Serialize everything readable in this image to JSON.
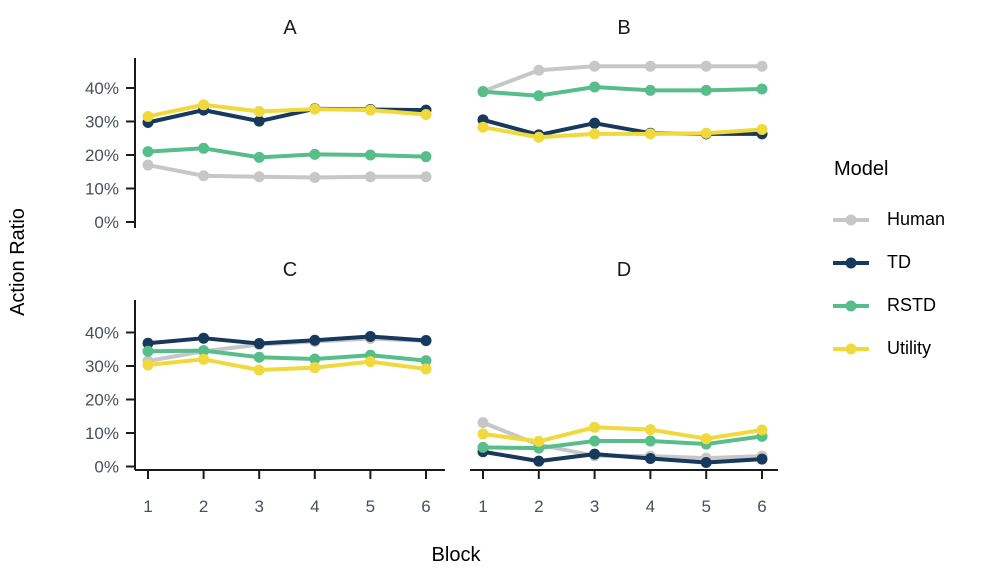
{
  "figure": {
    "background": "#ffffff"
  },
  "legend": {
    "title": "Model",
    "entries": [
      {
        "label": "Human",
        "color": "#c7c7c7"
      },
      {
        "label": "TD",
        "color": "#17395c"
      },
      {
        "label": "RSTD",
        "color": "#57bd8b"
      },
      {
        "label": "Utility",
        "color": "#efd93c"
      }
    ]
  },
  "chart_data": {
    "type": "line",
    "title": "",
    "xlabel": "Block",
    "ylabel": "Action Ratio",
    "x": [
      1,
      2,
      3,
      4,
      5,
      6
    ],
    "xtick_labels": [
      "1",
      "2",
      "3",
      "4",
      "5",
      "6"
    ],
    "yticks": [
      0,
      10,
      20,
      30,
      40
    ],
    "ytick_labels": [
      "0%",
      "10%",
      "20%",
      "30%",
      "40%"
    ],
    "ylim": [
      0,
      49
    ],
    "grid": false,
    "legend_title": "Model",
    "legend_position": "right",
    "facet_layout": "2x2",
    "panels": [
      {
        "title": "A",
        "series": [
          {
            "name": "Human",
            "values": [
              17.0,
              13.8,
              13.5,
              13.3,
              13.5,
              13.5
            ]
          },
          {
            "name": "TD",
            "values": [
              29.7,
              33.4,
              30.1,
              33.8,
              33.6,
              33.4
            ]
          },
          {
            "name": "RSTD",
            "values": [
              21.0,
              22.0,
              19.3,
              20.2,
              20.0,
              19.5
            ]
          },
          {
            "name": "Utility",
            "values": [
              31.5,
              35.0,
              33.0,
              33.7,
              33.4,
              32.1
            ]
          }
        ]
      },
      {
        "title": "B",
        "series": [
          {
            "name": "Human",
            "values": [
              39.0,
              45.3,
              46.5,
              46.5,
              46.5,
              46.5
            ]
          },
          {
            "name": "TD",
            "values": [
              30.5,
              26.0,
              29.5,
              26.5,
              26.3,
              26.3
            ]
          },
          {
            "name": "RSTD",
            "values": [
              38.9,
              37.7,
              40.3,
              39.3,
              39.3,
              39.7
            ]
          },
          {
            "name": "Utility",
            "values": [
              28.3,
              25.3,
              26.3,
              26.3,
              26.5,
              27.6
            ]
          }
        ]
      },
      {
        "title": "C",
        "series": [
          {
            "name": "Human",
            "values": [
              31.5,
              34.4,
              36.4,
              37.3,
              38.2,
              37.5
            ]
          },
          {
            "name": "TD",
            "values": [
              36.8,
              38.3,
              36.7,
              37.7,
              38.8,
              37.6
            ]
          },
          {
            "name": "RSTD",
            "values": [
              34.4,
              34.6,
              32.6,
              32.1,
              33.2,
              31.6
            ]
          },
          {
            "name": "Utility",
            "values": [
              30.3,
              32.0,
              28.8,
              29.5,
              31.3,
              29.1
            ]
          }
        ]
      },
      {
        "title": "D",
        "series": [
          {
            "name": "Human",
            "values": [
              13.1,
              6.5,
              3.2,
              3.1,
              2.5,
              3.1
            ]
          },
          {
            "name": "TD",
            "values": [
              4.4,
              1.6,
              3.7,
              2.4,
              1.2,
              2.2
            ]
          },
          {
            "name": "RSTD",
            "values": [
              5.7,
              5.5,
              7.6,
              7.6,
              6.7,
              9.0
            ]
          },
          {
            "name": "Utility",
            "values": [
              9.7,
              7.5,
              11.7,
              11.0,
              8.3,
              10.9
            ]
          }
        ]
      }
    ]
  }
}
